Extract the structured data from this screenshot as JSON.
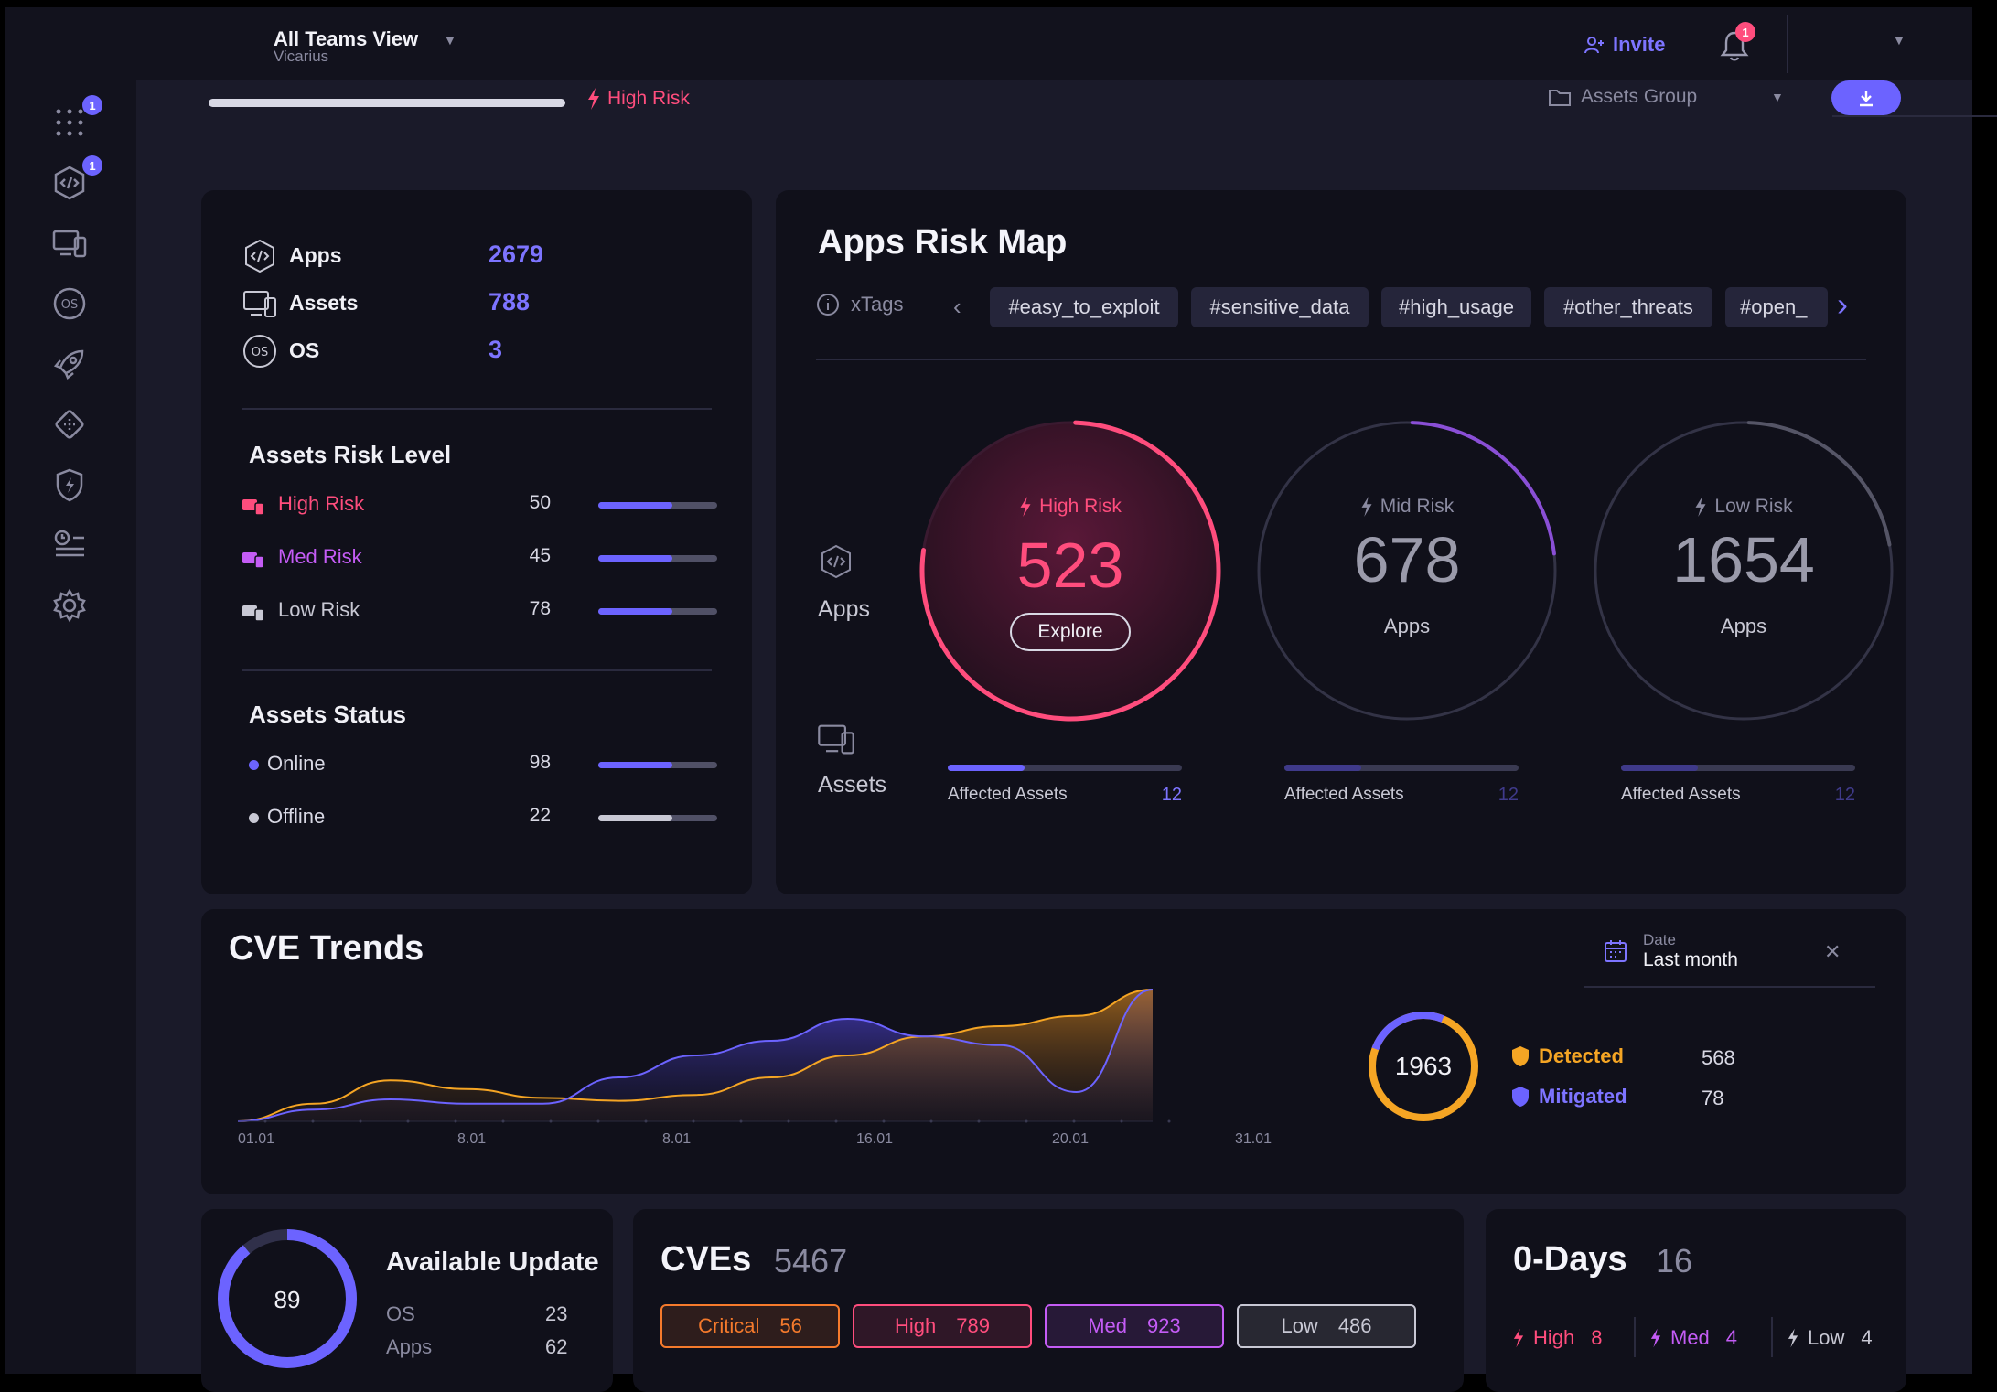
{
  "topbar": {
    "team": "All Teams View",
    "org": "Vicarius",
    "invite": "Invite",
    "notification_count": "1"
  },
  "sidebar": {
    "badge1": "1",
    "badge2": "1"
  },
  "filter": {
    "active": "High Risk",
    "assets_group": "Assets Group"
  },
  "summary": {
    "items": [
      {
        "label": "Apps",
        "value": "2679"
      },
      {
        "label": "Assets",
        "value": "788"
      },
      {
        "label": "OS",
        "value": "3"
      }
    ],
    "risk_title": "Assets Risk Level",
    "risk_levels": [
      {
        "label": "High Risk",
        "value": "50",
        "fill": 0.62,
        "color": "#ff4d7d"
      },
      {
        "label": "Med Risk",
        "value": "45",
        "fill": 0.62,
        "color": "#c45cf5"
      },
      {
        "label": "Low Risk",
        "value": "78",
        "fill": 0.62,
        "color": "#c8c8d4"
      }
    ],
    "status_title": "Assets Status",
    "status": [
      {
        "label": "Online",
        "value": "98",
        "fill": 0.62,
        "color": "#6c63ff"
      },
      {
        "label": "Offline",
        "value": "22",
        "fill": 0.62,
        "color": "#c8c8d4"
      }
    ]
  },
  "riskmap": {
    "title": "Apps Risk Map",
    "xtags_label": "xTags",
    "tags": [
      "#easy_to_exploit",
      "#sensitive_data",
      "#high_usage",
      "#other_threats",
      "#open_"
    ],
    "row_apps": "Apps",
    "row_assets": "Assets",
    "circles": [
      {
        "label": "High Risk",
        "value": "523",
        "sub": "Explore",
        "affected_label": "Affected Assets",
        "affected": "12",
        "fill": 0.33
      },
      {
        "label": "Mid Risk",
        "value": "678",
        "sub": "Apps",
        "affected_label": "Affected Assets",
        "affected": "12",
        "fill": 0.33
      },
      {
        "label": "Low Risk",
        "value": "1654",
        "sub": "Apps",
        "affected_label": "Affected Assets",
        "affected": "12",
        "fill": 0.33
      }
    ]
  },
  "cve_trends": {
    "title": "CVE Trends",
    "date_label": "Date",
    "date_value": "Last month",
    "total": "1963",
    "legend": [
      {
        "label": "Detected",
        "value": "568",
        "color": "#f5a524"
      },
      {
        "label": "Mitigated",
        "value": "78",
        "color": "#6c63ff"
      }
    ]
  },
  "chart_data": {
    "type": "area",
    "title": "CVE Trends",
    "x_tick_labels": [
      "01.01",
      "8.01",
      "8.01",
      "16.01",
      "20.01",
      "31.01"
    ],
    "series": [
      {
        "name": "Detected",
        "color": "#f5a524",
        "values": [
          0,
          12,
          28,
          22,
          16,
          14,
          18,
          30,
          45,
          58,
          65,
          72,
          90
        ]
      },
      {
        "name": "Mitigated",
        "color": "#6c63ff",
        "values": [
          0,
          8,
          15,
          12,
          12,
          30,
          45,
          55,
          70,
          58,
          52,
          20,
          90
        ]
      }
    ]
  },
  "updates": {
    "value": "89",
    "fill": 0.89,
    "title": "Available Update",
    "rows": [
      {
        "label": "OS",
        "value": "23"
      },
      {
        "label": "Apps",
        "value": "62"
      }
    ]
  },
  "cves": {
    "title": "CVEs",
    "total": "5467",
    "pills": [
      {
        "label": "Critical",
        "value": "56",
        "color": "#f57a2c"
      },
      {
        "label": "High",
        "value": "789",
        "color": "#ff4d7d"
      },
      {
        "label": "Med",
        "value": "923",
        "color": "#c45cf5"
      },
      {
        "label": "Low",
        "value": "486",
        "color": "#c8c8d4"
      }
    ]
  },
  "zerodays": {
    "title": "0-Days",
    "total": "16",
    "items": [
      {
        "label": "High",
        "value": "8",
        "color": "#ff4d7d"
      },
      {
        "label": "Med",
        "value": "4",
        "color": "#c45cf5"
      },
      {
        "label": "Low",
        "value": "4",
        "color": "#c8c8d4"
      }
    ]
  }
}
